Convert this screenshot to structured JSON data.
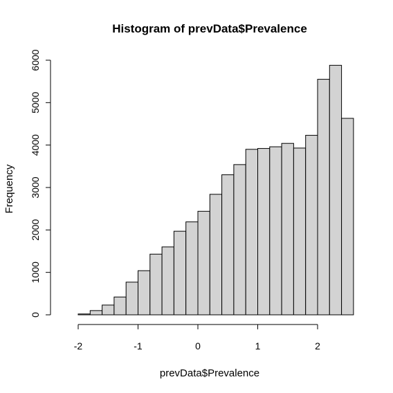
{
  "chart_data": {
    "type": "bar",
    "title": "Histogram of prevData$Prevalence",
    "xlabel": "prevData$Prevalence",
    "ylabel": "Frequency",
    "bin_width": 0.2,
    "bins": [
      {
        "start": -2.2,
        "end": -2.0,
        "count": 0
      },
      {
        "start": -2.0,
        "end": -1.8,
        "count": 20
      },
      {
        "start": -1.8,
        "end": -1.6,
        "count": 100
      },
      {
        "start": -1.6,
        "end": -1.4,
        "count": 230
      },
      {
        "start": -1.4,
        "end": -1.2,
        "count": 420
      },
      {
        "start": -1.2,
        "end": -1.0,
        "count": 770
      },
      {
        "start": -1.0,
        "end": -0.8,
        "count": 1040
      },
      {
        "start": -0.8,
        "end": -0.6,
        "count": 1430
      },
      {
        "start": -0.6,
        "end": -0.4,
        "count": 1600
      },
      {
        "start": -0.4,
        "end": -0.2,
        "count": 1970
      },
      {
        "start": -0.2,
        "end": 0.0,
        "count": 2190
      },
      {
        "start": 0.0,
        "end": 0.2,
        "count": 2440
      },
      {
        "start": 0.2,
        "end": 0.4,
        "count": 2840
      },
      {
        "start": 0.4,
        "end": 0.6,
        "count": 3300
      },
      {
        "start": 0.6,
        "end": 0.8,
        "count": 3540
      },
      {
        "start": 0.8,
        "end": 1.0,
        "count": 3900
      },
      {
        "start": 1.0,
        "end": 1.2,
        "count": 3920
      },
      {
        "start": 1.2,
        "end": 1.4,
        "count": 3960
      },
      {
        "start": 1.4,
        "end": 1.6,
        "count": 4040
      },
      {
        "start": 1.6,
        "end": 1.8,
        "count": 3930
      },
      {
        "start": 1.8,
        "end": 2.0,
        "count": 4230
      },
      {
        "start": 2.0,
        "end": 2.2,
        "count": 5550
      },
      {
        "start": 2.2,
        "end": 2.4,
        "count": 5880
      },
      {
        "start": 2.4,
        "end": 2.6,
        "count": 4630
      }
    ],
    "x_ticks": [
      -2,
      -1,
      0,
      1,
      2
    ],
    "y_ticks": [
      0,
      1000,
      2000,
      3000,
      4000,
      5000,
      6000
    ],
    "xlim": [
      -2.2,
      2.6
    ],
    "ylim": [
      0,
      6000
    ],
    "grid": false,
    "bar_color": "#d3d3d3",
    "edge_color": "#000000"
  }
}
